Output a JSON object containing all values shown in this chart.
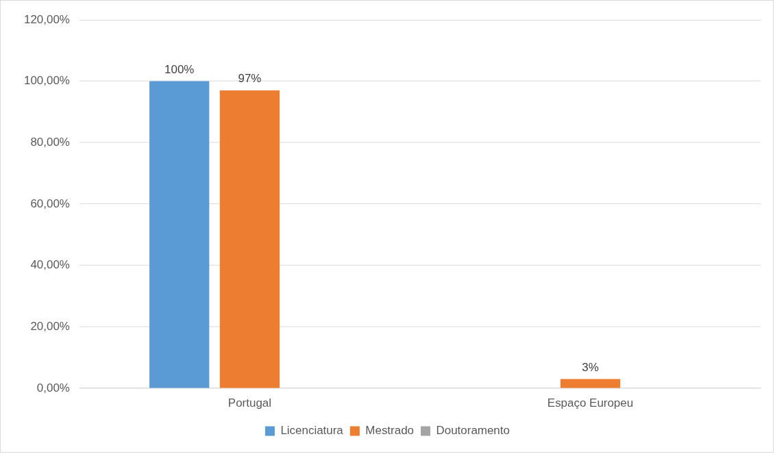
{
  "chart_data": {
    "type": "bar",
    "categories": [
      "Portugal",
      "Espaço Europeu"
    ],
    "series": [
      {
        "name": "Licenciatura",
        "color": "#5b9bd5",
        "values": [
          100,
          0
        ],
        "value_labels": [
          "100%",
          null
        ]
      },
      {
        "name": "Mestrado",
        "color": "#ed7d31",
        "values": [
          97,
          3
        ],
        "value_labels": [
          "97%",
          "3%"
        ]
      },
      {
        "name": "Doutoramento",
        "color": "#a5a5a5",
        "values": [
          0,
          0
        ],
        "value_labels": [
          null,
          null
        ]
      }
    ],
    "ylim": [
      0,
      120
    ],
    "yticks": [
      {
        "value": 0,
        "label": "0,00%"
      },
      {
        "value": 20,
        "label": "20,00%"
      },
      {
        "value": 40,
        "label": "40,00%"
      },
      {
        "value": 60,
        "label": "60,00%"
      },
      {
        "value": 80,
        "label": "80,00%"
      },
      {
        "value": 100,
        "label": "100,00%"
      },
      {
        "value": 120,
        "label": "120,00%"
      }
    ],
    "grid": "y",
    "legend": "bottom"
  }
}
